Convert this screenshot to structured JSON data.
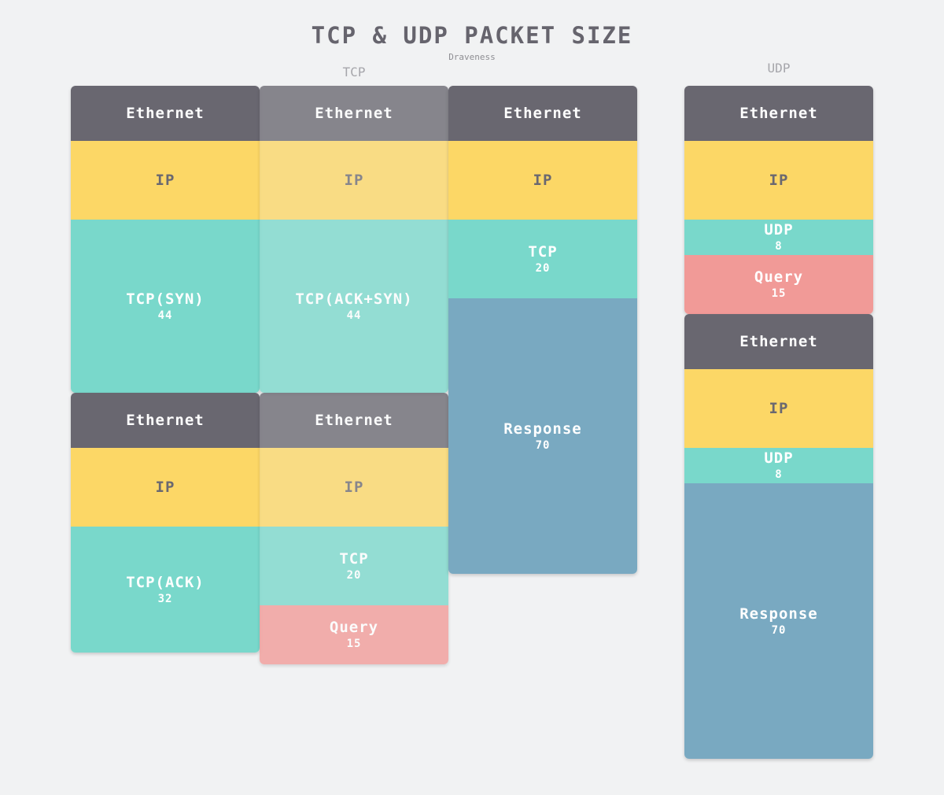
{
  "title": "TCP & UDP PACKET SIZE",
  "author": "Draveness",
  "groups": {
    "tcp": "TCP",
    "udp": "UDP"
  },
  "packets": {
    "syn": {
      "ethernet": "Ethernet",
      "ip": "IP",
      "tcp": {
        "name": "TCP(SYN)",
        "size": "44"
      }
    },
    "synack": {
      "ethernet": "Ethernet",
      "ip": "IP",
      "tcp": {
        "name": "TCP(ACK+SYN)",
        "size": "44"
      }
    },
    "ack": {
      "ethernet": "Ethernet",
      "ip": "IP",
      "tcp": {
        "name": "TCP(ACK)",
        "size": "32"
      }
    },
    "tcp_query": {
      "ethernet": "Ethernet",
      "ip": "IP",
      "tcp": {
        "name": "TCP",
        "size": "20"
      },
      "query": {
        "name": "Query",
        "size": "15"
      }
    },
    "tcp_response": {
      "ethernet": "Ethernet",
      "ip": "IP",
      "tcp": {
        "name": "TCP",
        "size": "20"
      },
      "response": {
        "name": "Response",
        "size": "70"
      }
    },
    "udp_query": {
      "ethernet": "Ethernet",
      "ip": "IP",
      "udp": {
        "name": "UDP",
        "size": "8"
      },
      "query": {
        "name": "Query",
        "size": "15"
      }
    },
    "udp_response": {
      "ethernet": "Ethernet",
      "ip": "IP",
      "udp": {
        "name": "UDP",
        "size": "8"
      },
      "response": {
        "name": "Response",
        "size": "70"
      }
    }
  },
  "colors": {
    "ethernet": "#696770",
    "ip": "#fcd766",
    "transport": "#79d8cb",
    "query": "#f19a97",
    "response": "#79a9c1"
  }
}
